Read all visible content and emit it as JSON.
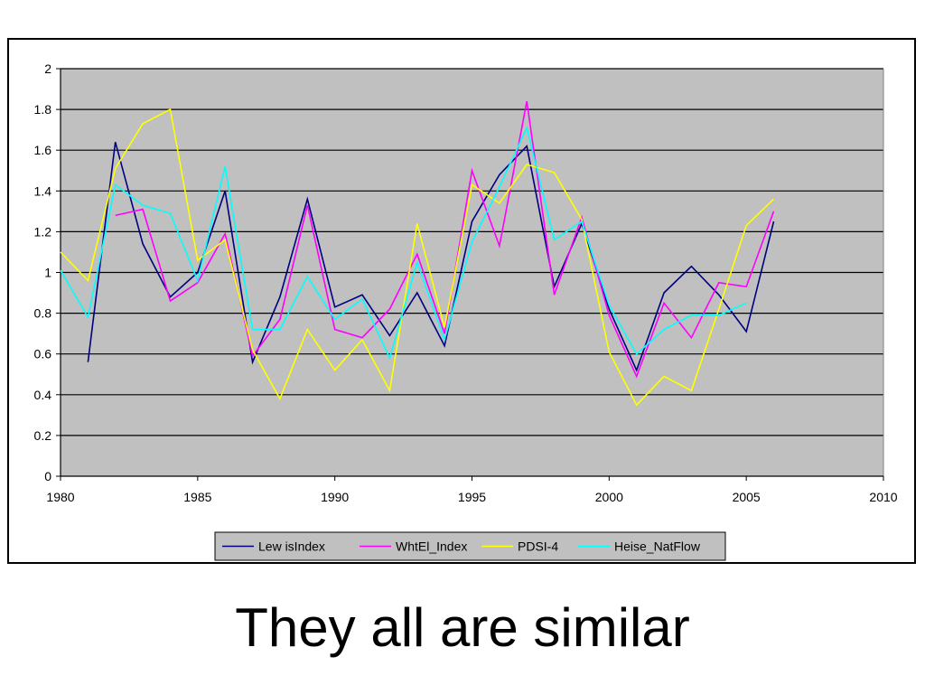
{
  "slide": {
    "caption": "They all are similar"
  },
  "chart_data": {
    "type": "line",
    "title": "",
    "xlabel": "",
    "ylabel": "",
    "xlim": [
      1980,
      2010
    ],
    "ylim": [
      0,
      2
    ],
    "x_ticks": [
      "1980",
      "1985",
      "1990",
      "1995",
      "2000",
      "2005",
      "2010"
    ],
    "y_ticks": [
      "0",
      "0.2",
      "0.4",
      "0.6",
      "0.8",
      "1",
      "1.2",
      "1.4",
      "1.6",
      "1.8",
      "2"
    ],
    "grid": "horizontal",
    "plot_background": "#c0c0c0",
    "legend_position": "bottom",
    "series": [
      {
        "name": "Lew isIndex",
        "color": "#000080",
        "x": [
          1981,
          1982,
          1983,
          1984,
          1985,
          1986,
          1987,
          1988,
          1989,
          1990,
          1991,
          1992,
          1993,
          1994,
          1995,
          1996,
          1997,
          1998,
          1999,
          2000,
          2001,
          2002,
          2003,
          2004,
          2005,
          2006
        ],
        "values": [
          0.56,
          1.64,
          1.14,
          0.88,
          1.0,
          1.4,
          0.56,
          0.88,
          1.36,
          0.83,
          0.89,
          0.69,
          0.9,
          0.64,
          1.25,
          1.48,
          1.62,
          0.93,
          1.24,
          0.82,
          0.52,
          0.9,
          1.03,
          0.89,
          0.71,
          1.25
        ]
      },
      {
        "name": "WhtEl_Index",
        "color": "#ff00ff",
        "x": [
          1982,
          1983,
          1984,
          1985,
          1986,
          1987,
          1988,
          1989,
          1990,
          1991,
          1992,
          1993,
          1994,
          1995,
          1996,
          1997,
          1998,
          1999,
          2000,
          2001,
          2002,
          2003,
          2004,
          2005,
          2006
        ],
        "values": [
          1.28,
          1.31,
          0.86,
          0.95,
          1.19,
          0.59,
          0.77,
          1.33,
          0.72,
          0.68,
          0.82,
          1.09,
          0.7,
          1.5,
          1.13,
          1.84,
          0.89,
          1.27,
          0.79,
          0.49,
          0.85,
          0.68,
          0.95,
          0.93,
          1.3
        ]
      },
      {
        "name": "PDSI-4",
        "color": "#ffff00",
        "x": [
          1980,
          1981,
          1982,
          1983,
          1984,
          1985,
          1986,
          1987,
          1988,
          1989,
          1990,
          1991,
          1992,
          1993,
          1994,
          1995,
          1996,
          1997,
          1998,
          1999,
          2000,
          2001,
          2002,
          2003,
          2004,
          2005,
          2006
        ],
        "values": [
          1.1,
          0.96,
          1.51,
          1.73,
          1.8,
          1.06,
          1.16,
          0.62,
          0.38,
          0.72,
          0.52,
          0.67,
          0.42,
          1.24,
          0.73,
          1.43,
          1.34,
          1.53,
          1.49,
          1.26,
          0.61,
          0.35,
          0.49,
          0.42,
          0.82,
          1.23,
          1.36
        ]
      },
      {
        "name": "Heise_NatFlow",
        "color": "#00ffff",
        "x": [
          1980,
          1981,
          1982,
          1983,
          1984,
          1985,
          1986,
          1987,
          1988,
          1989,
          1990,
          1991,
          1992,
          1993,
          1994,
          1995,
          1996,
          1997,
          1998,
          1999,
          2000,
          2001,
          2002,
          2003,
          2004,
          2005
        ],
        "values": [
          1.01,
          0.78,
          1.43,
          1.33,
          1.29,
          0.96,
          1.52,
          0.72,
          0.72,
          0.98,
          0.77,
          0.87,
          0.58,
          1.05,
          0.67,
          1.15,
          1.42,
          1.71,
          1.16,
          1.25,
          0.84,
          0.6,
          0.72,
          0.79,
          0.79,
          0.85
        ]
      }
    ]
  }
}
